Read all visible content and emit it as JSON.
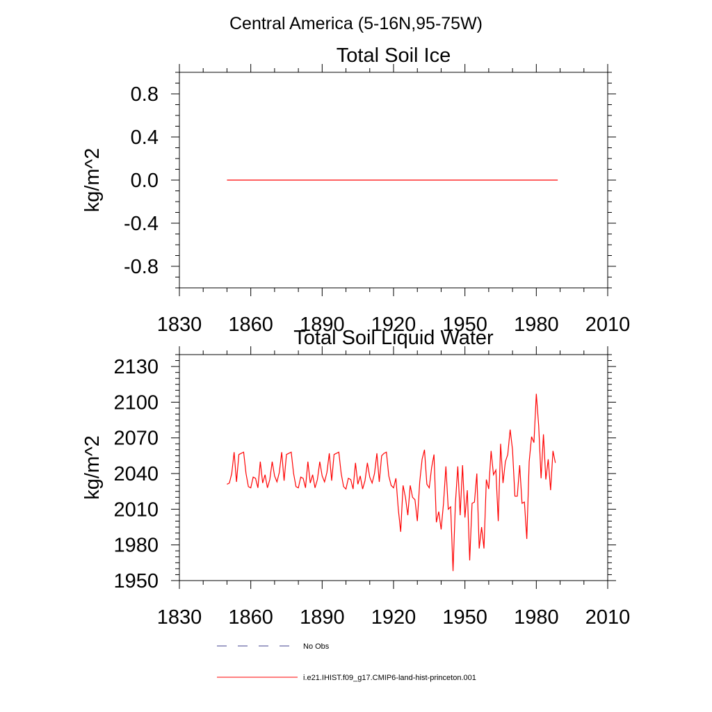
{
  "page_title": "Central America (5-16N,95-75W)",
  "chart_data": [
    {
      "type": "line",
      "title": "Total Soil Ice",
      "xlabel": "",
      "ylabel": "kg/m^2",
      "xlim": [
        1830,
        2010
      ],
      "ylim": [
        -1,
        1
      ],
      "xticks": [
        1830,
        1860,
        1890,
        1920,
        1950,
        1980,
        2010
      ],
      "xtick_labels": [
        "1830",
        "1860",
        "1890",
        "1920",
        "1950",
        "1980",
        "2010"
      ],
      "yticks": [
        0.8,
        0.4,
        0.0,
        -0.4,
        -0.8
      ],
      "ytick_labels": [
        "0.8",
        "0.4",
        "0.0",
        "-0.4",
        "-0.8"
      ],
      "series": [
        {
          "color": "#ff0000",
          "x_start": 1850,
          "values": [
            0,
            0,
            0,
            0,
            0,
            0,
            0,
            0,
            0,
            0,
            0,
            0,
            0,
            0,
            0,
            0,
            0,
            0,
            0,
            0,
            0,
            0,
            0,
            0,
            0,
            0,
            0,
            0,
            0,
            0,
            0,
            0,
            0,
            0,
            0,
            0,
            0,
            0,
            0,
            0,
            0,
            0,
            0,
            0,
            0,
            0,
            0,
            0,
            0,
            0,
            0,
            0,
            0,
            0,
            0,
            0,
            0,
            0,
            0,
            0,
            0,
            0,
            0,
            0,
            0,
            0,
            0,
            0,
            0,
            0,
            0,
            0,
            0,
            0,
            0,
            0,
            0,
            0,
            0,
            0,
            0,
            0,
            0,
            0,
            0,
            0,
            0,
            0,
            0,
            0,
            0,
            0,
            0,
            0,
            0,
            0,
            0,
            0,
            0,
            0,
            0,
            0,
            0,
            0,
            0,
            0,
            0,
            0,
            0,
            0,
            0,
            0,
            0,
            0,
            0,
            0,
            0,
            0,
            0,
            0,
            0,
            0,
            0,
            0,
            0,
            0,
            0,
            0,
            0,
            0,
            0,
            0,
            0,
            0,
            0,
            0,
            0,
            0,
            0,
            0
          ]
        }
      ]
    },
    {
      "type": "line",
      "title": "Total Soil Liquid Water",
      "xlabel": "",
      "ylabel": "kg/m^2",
      "xlim": [
        1830,
        2010
      ],
      "ylim": [
        1950,
        2140
      ],
      "xticks": [
        1830,
        1860,
        1890,
        1920,
        1950,
        1980,
        2010
      ],
      "xtick_labels": [
        "1830",
        "1860",
        "1890",
        "1920",
        "1950",
        "1980",
        "2010"
      ],
      "yticks": [
        2130,
        2100,
        2070,
        2040,
        2010,
        1980,
        1950
      ],
      "ytick_labels": [
        "2130",
        "2100",
        "2070",
        "2040",
        "2010",
        "1980",
        "1950"
      ],
      "series": [
        {
          "color": "#ff0000",
          "x_start": 1850,
          "values": [
            2031,
            2032,
            2040,
            2058,
            2033,
            2056,
            2057,
            2058,
            2040,
            2029,
            2028,
            2037,
            2036,
            2028,
            2050,
            2032,
            2039,
            2028,
            2035,
            2050,
            2038,
            2033,
            2041,
            2058,
            2034,
            2056,
            2057,
            2058,
            2040,
            2029,
            2028,
            2037,
            2036,
            2028,
            2050,
            2032,
            2039,
            2028,
            2035,
            2050,
            2038,
            2033,
            2041,
            2057,
            2034,
            2056,
            2057,
            2058,
            2040,
            2029,
            2027,
            2036,
            2035,
            2027,
            2049,
            2031,
            2038,
            2027,
            2034,
            2049,
            2037,
            2032,
            2040,
            2057,
            2033,
            2055,
            2057,
            2058,
            2038,
            2030,
            2028,
            2036,
            2010,
            1991,
            2030,
            2020,
            2005,
            2030,
            2020,
            2018,
            2000,
            2033,
            2052,
            2060,
            2031,
            2028,
            2045,
            2056,
            1999,
            2008,
            1993,
            2015,
            2046,
            2010,
            2012,
            1958,
            2015,
            2046,
            2005,
            2047,
            2003,
            2026,
            1967,
            2015,
            2016,
            2040,
            1977,
            1995,
            1977,
            2035,
            2027,
            2059,
            2039,
            2043,
            2000,
            2065,
            2032,
            2050,
            2056,
            2077,
            2060,
            2021,
            2021,
            2047,
            2015,
            2016,
            1985,
            2050,
            2071,
            2066,
            2107,
            2080,
            2036,
            2073,
            2035,
            2052,
            2026,
            2059,
            2049
          ]
        }
      ]
    }
  ],
  "legend": {
    "items": [
      {
        "label": "No Obs",
        "color": "#3f3f8f",
        "style": "dashed"
      },
      {
        "label": "i.e21.IHIST.f09_g17.CMIP6-land-hist-princeton.001",
        "color": "#ff0000",
        "style": "solid"
      }
    ]
  }
}
